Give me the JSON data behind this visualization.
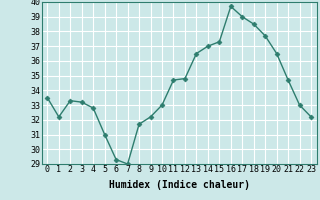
{
  "x": [
    0,
    1,
    2,
    3,
    4,
    5,
    6,
    7,
    8,
    9,
    10,
    11,
    12,
    13,
    14,
    15,
    16,
    17,
    18,
    19,
    20,
    21,
    22,
    23
  ],
  "y": [
    33.5,
    32.2,
    33.3,
    33.2,
    32.8,
    31.0,
    29.3,
    29.0,
    31.7,
    32.2,
    33.0,
    34.7,
    34.8,
    36.5,
    37.0,
    37.3,
    39.7,
    39.0,
    38.5,
    37.7,
    36.5,
    34.7,
    33.0,
    32.2
  ],
  "line_color": "#2e7d6e",
  "marker": "D",
  "markersize": 2.5,
  "linewidth": 1.0,
  "bg_color": "#cce8e8",
  "grid_color": "#ffffff",
  "xlabel": "Humidex (Indice chaleur)",
  "xlabel_fontsize": 7,
  "tick_fontsize": 6,
  "ylim": [
    29,
    40
  ],
  "yticks": [
    29,
    30,
    31,
    32,
    33,
    34,
    35,
    36,
    37,
    38,
    39,
    40
  ],
  "xticks": [
    0,
    1,
    2,
    3,
    4,
    5,
    6,
    7,
    8,
    9,
    10,
    11,
    12,
    13,
    14,
    15,
    16,
    17,
    18,
    19,
    20,
    21,
    22,
    23
  ]
}
